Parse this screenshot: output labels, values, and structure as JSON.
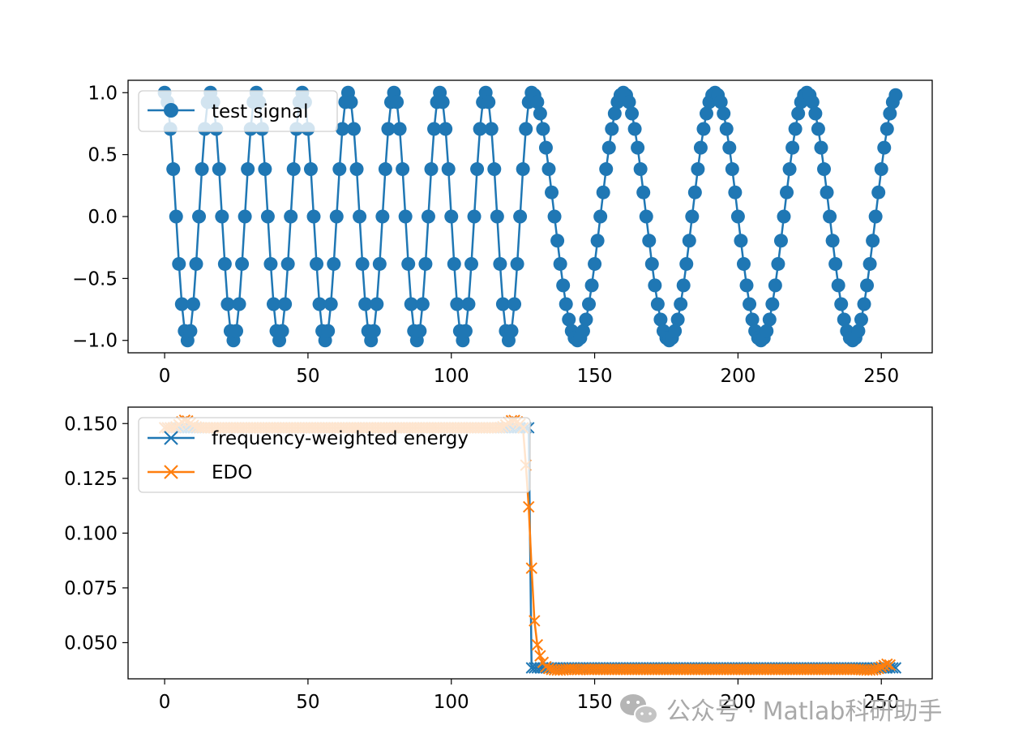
{
  "chart_data": [
    {
      "type": "line",
      "title": "",
      "xlabel": "",
      "ylabel": "",
      "xlim": [
        -12.75,
        267.75
      ],
      "ylim": [
        -1.1,
        1.1
      ],
      "xticks": [
        0,
        50,
        100,
        150,
        200,
        250
      ],
      "xtick_labels": [
        "0",
        "50",
        "100",
        "150",
        "200",
        "250"
      ],
      "yticks": [
        -1.0,
        -0.5,
        0.0,
        0.5,
        1.0
      ],
      "ytick_labels": [
        "−1.0",
        "−0.5",
        "0.0",
        "0.5",
        "1.0"
      ],
      "legend_position": "top-left",
      "series": [
        {
          "name": "test signal",
          "color": "#1f77b4",
          "marker": "circle",
          "n_points": 256,
          "formula": "cos(2*pi*n/16) for n<128; cos(2*pi*n/32) for n>=128"
        }
      ]
    },
    {
      "type": "line",
      "title": "",
      "xlabel": "",
      "ylabel": "",
      "xlim": [
        -12.75,
        267.75
      ],
      "ylim": [
        0.0335,
        0.1575
      ],
      "xticks": [
        0,
        50,
        100,
        150,
        200,
        250
      ],
      "xtick_labels": [
        "0",
        "50",
        "100",
        "150",
        "200",
        "250"
      ],
      "yticks": [
        0.05,
        0.075,
        0.1,
        0.125,
        0.15
      ],
      "ytick_labels": [
        "0.050",
        "0.075",
        "0.100",
        "0.125",
        "0.150"
      ],
      "legend_position": "top-left",
      "series": [
        {
          "name": "frequency-weighted energy",
          "color": "#1f77b4",
          "marker": "x",
          "segments": [
            {
              "x_start": 0,
              "x_end": 127,
              "value": 0.1481
            },
            {
              "x_start": 128,
              "x_end": 255,
              "value": 0.0385
            }
          ]
        },
        {
          "name": "EDO",
          "color": "#ff7f0e",
          "marker": "x",
          "x": [
            0,
            1,
            2,
            3,
            4,
            5,
            6,
            7,
            8,
            9,
            10,
            11,
            12,
            13,
            14,
            15,
            16,
            17,
            18,
            19,
            20,
            113,
            114,
            115,
            116,
            117,
            118,
            119,
            120,
            121,
            122,
            123,
            124,
            125,
            126,
            127,
            128,
            129,
            130,
            131,
            132,
            133,
            134,
            135,
            136,
            137,
            138,
            139,
            140,
            141,
            142,
            143,
            144,
            145,
            146,
            147,
            148,
            149,
            150,
            240,
            241,
            242,
            243,
            244,
            245,
            246,
            247,
            248,
            249,
            250,
            251,
            252,
            253
          ],
          "values": [
            0.1481,
            0.1481,
            0.1481,
            0.1481,
            0.1485,
            0.1495,
            0.1508,
            0.1515,
            0.1512,
            0.1502,
            0.1492,
            0.1485,
            0.1482,
            0.1481,
            0.1481,
            0.1481,
            0.1481,
            0.1481,
            0.1481,
            0.1481,
            0.1481,
            0.1481,
            0.1481,
            0.1481,
            0.1481,
            0.1482,
            0.1486,
            0.1494,
            0.1505,
            0.1513,
            0.1514,
            0.1508,
            0.1498,
            0.148,
            0.131,
            0.112,
            0.084,
            0.06,
            0.049,
            0.044,
            0.041,
            0.039,
            0.0382,
            0.0378,
            0.0376,
            0.0375,
            0.0375,
            0.0376,
            0.0378,
            0.0379,
            0.0379,
            0.0378,
            0.0377,
            0.0377,
            0.0378,
            0.0379,
            0.0378,
            0.0378,
            0.0378,
            0.0378,
            0.0378,
            0.0378,
            0.0377,
            0.0376,
            0.0375,
            0.0375,
            0.0376,
            0.0378,
            0.0382,
            0.0389,
            0.0396,
            0.0402,
            0.0398
          ],
          "note": "value ~0.1481 from 0 to 127 and ~0.0378 from 151 to 239 (flat plateaus)"
        }
      ]
    }
  ],
  "watermark": {
    "icon": "wechat-icon",
    "text": "公众号 · Matlab科研助手"
  }
}
